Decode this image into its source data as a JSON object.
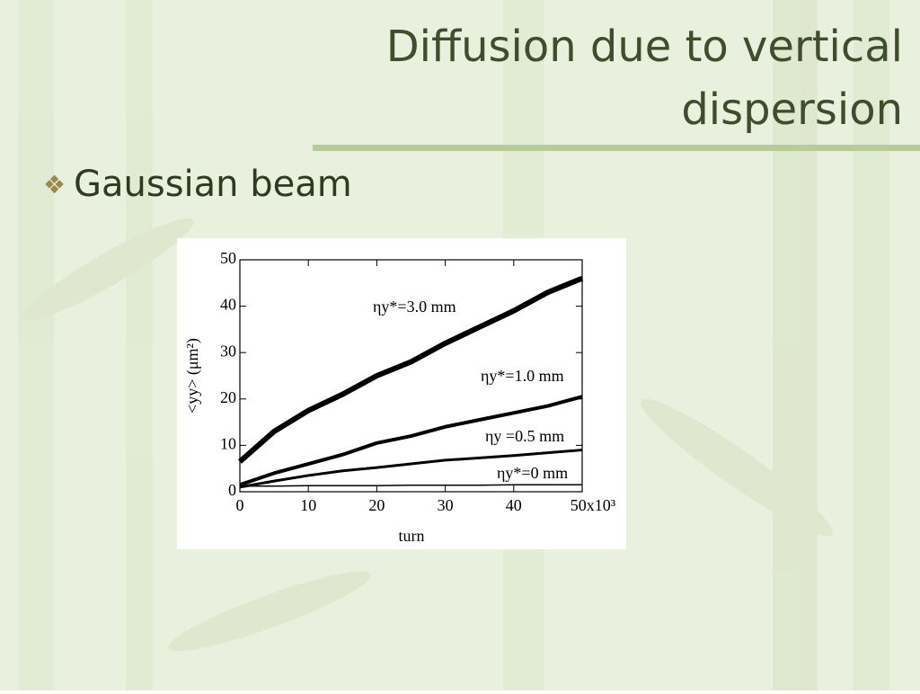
{
  "slide": {
    "title_line1": "Diffusion due to vertical",
    "title_line2": "dispersion",
    "bullet": "Gaussian beam"
  },
  "chart_data": {
    "type": "line",
    "x_label": "turn",
    "y_label": "<yy> (μm²)",
    "x": [
      0,
      5,
      10,
      15,
      20,
      25,
      30,
      35,
      40,
      45,
      50
    ],
    "series": [
      {
        "name": "ηy*=3.0 mm",
        "color": "#000000",
        "values": [
          6.5,
          13,
          17.5,
          21,
          25,
          28,
          32,
          35.5,
          39,
          43,
          46
        ]
      },
      {
        "name": "ηy*=1.0 mm",
        "color": "#000000",
        "values": [
          1.5,
          4,
          6,
          8,
          10.5,
          12,
          14,
          15.5,
          17,
          18.5,
          20.5
        ]
      },
      {
        "name": "ηy =0.5 mm",
        "color": "#000000",
        "values": [
          1,
          2.3,
          3.5,
          4.5,
          5.2,
          6,
          6.8,
          7.3,
          7.8,
          8.4,
          9
        ]
      },
      {
        "name": "ηy*=0 mm",
        "color": "#000000",
        "values": [
          1.2,
          1.2,
          1.3,
          1.3,
          1.3,
          1.4,
          1.4,
          1.4,
          1.5,
          1.5,
          1.5
        ]
      }
    ],
    "xlim": [
      0,
      50
    ],
    "xticks": [
      0,
      10,
      20,
      30,
      40,
      {
        "value": 50,
        "label": "50x10³"
      }
    ],
    "ylim": [
      0,
      50
    ],
    "yticks": [
      0,
      10,
      20,
      30,
      40,
      50
    ]
  }
}
